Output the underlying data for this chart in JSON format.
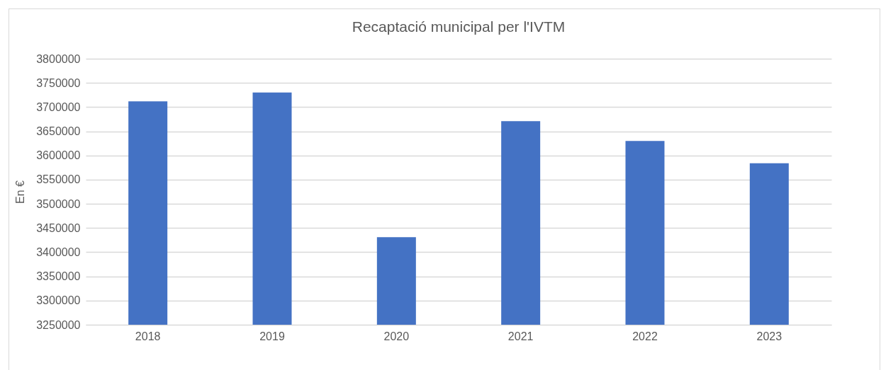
{
  "chart_data": {
    "type": "bar",
    "title": "Recaptació municipal per l'IVTM",
    "ylabel": "En €",
    "categories": [
      "2018",
      "2019",
      "2020",
      "2021",
      "2022",
      "2023"
    ],
    "values": [
      3712000,
      3730000,
      3431000,
      3671000,
      3630000,
      3584000
    ],
    "color": "#4472c4",
    "ylim": [
      3250000,
      3800000
    ],
    "yticks": [
      3250000,
      3300000,
      3350000,
      3400000,
      3450000,
      3500000,
      3550000,
      3600000,
      3650000,
      3700000,
      3750000,
      3800000
    ],
    "grid": "y"
  }
}
